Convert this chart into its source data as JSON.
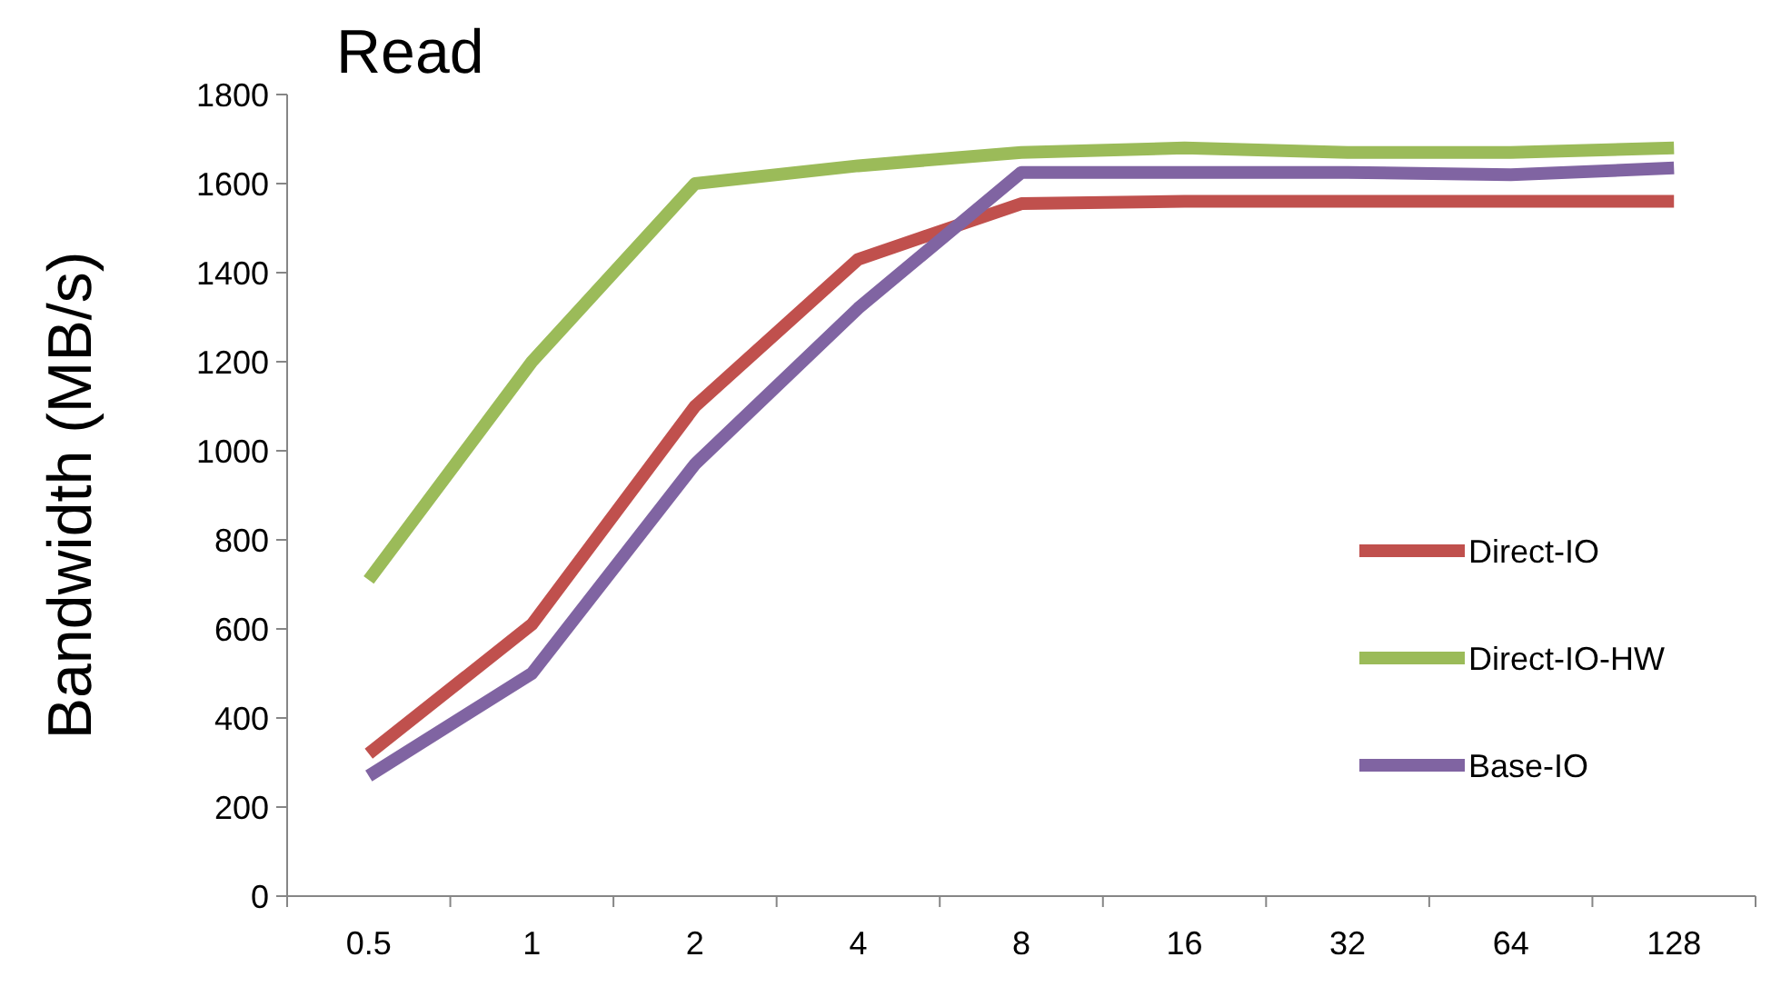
{
  "chart_data": {
    "type": "line",
    "title": "Read",
    "ylabel": "Bandwidth (MB/s)",
    "categories": [
      "0.5",
      "1",
      "2",
      "4",
      "8",
      "16",
      "32",
      "64",
      "128"
    ],
    "series": [
      {
        "name": "Direct-IO",
        "color": "#c0504d",
        "values": [
          320,
          610,
          1100,
          1430,
          1555,
          1560,
          1560,
          1560,
          1560
        ]
      },
      {
        "name": "Direct-IO-HW",
        "color": "#9bbb59",
        "values": [
          710,
          1200,
          1600,
          1640,
          1670,
          1680,
          1670,
          1670,
          1680
        ]
      },
      {
        "name": "Base-IO",
        "color": "#8064a2",
        "values": [
          270,
          500,
          970,
          1320,
          1625,
          1625,
          1625,
          1620,
          1635
        ]
      }
    ],
    "ylim": [
      0,
      1800
    ],
    "yticks": [
      0,
      200,
      400,
      600,
      800,
      1000,
      1200,
      1400,
      1600,
      1800
    ],
    "grid": false,
    "legend": "right",
    "marker": "none",
    "line_style": "solid"
  }
}
